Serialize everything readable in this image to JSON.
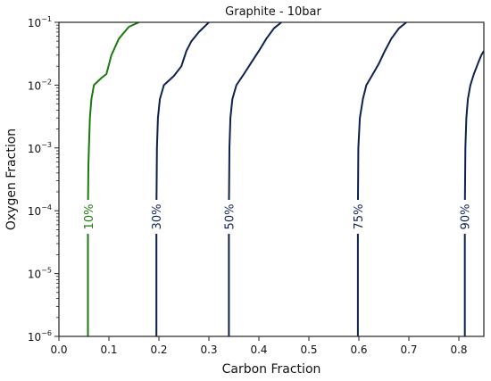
{
  "chart_data": {
    "type": "line",
    "title": "Graphite - 10bar",
    "xlabel": "Carbon Fraction",
    "ylabel": "Oxygen Fraction",
    "xlim": [
      0.0,
      0.85
    ],
    "ylim": [
      1e-06,
      0.1
    ],
    "y_scale": "log",
    "grid": false,
    "legend": "none",
    "x_ticks": [
      0.0,
      0.1,
      0.2,
      0.3,
      0.4,
      0.5,
      0.6,
      0.7,
      0.8
    ],
    "x_tick_labels": [
      "0.0",
      "0.1",
      "0.2",
      "0.3",
      "0.4",
      "0.5",
      "0.6",
      "0.7",
      "0.8"
    ],
    "y_ticks": [
      {
        "value": 1e-06,
        "base": "10",
        "exp": "−6"
      },
      {
        "value": 1e-05,
        "base": "10",
        "exp": "−5"
      },
      {
        "value": 0.0001,
        "base": "10",
        "exp": "−4"
      },
      {
        "value": 0.001,
        "base": "10",
        "exp": "−3"
      },
      {
        "value": 0.01,
        "base": "10",
        "exp": "−2"
      },
      {
        "value": 0.1,
        "base": "10",
        "exp": "−1"
      }
    ],
    "series": [
      {
        "label": "10%",
        "color": "#1a7a10",
        "label_at": {
          "x": 0.059,
          "y": 8e-05
        },
        "points": [
          [
            0.058,
            1e-06
          ],
          [
            0.058,
            0.0001
          ],
          [
            0.059,
            0.0005
          ],
          [
            0.06,
            0.001
          ],
          [
            0.062,
            0.003
          ],
          [
            0.065,
            0.006
          ],
          [
            0.07,
            0.01
          ],
          [
            0.085,
            0.013
          ],
          [
            0.095,
            0.015
          ],
          [
            0.105,
            0.03
          ],
          [
            0.12,
            0.055
          ],
          [
            0.14,
            0.085
          ],
          [
            0.16,
            0.1
          ]
        ]
      },
      {
        "label": "30%",
        "color": "#0d2150",
        "label_at": {
          "x": 0.195,
          "y": 8e-05
        },
        "points": [
          [
            0.195,
            1e-06
          ],
          [
            0.195,
            0.0001
          ],
          [
            0.196,
            0.001
          ],
          [
            0.198,
            0.003
          ],
          [
            0.202,
            0.006
          ],
          [
            0.21,
            0.01
          ],
          [
            0.23,
            0.014
          ],
          [
            0.245,
            0.02
          ],
          [
            0.255,
            0.035
          ],
          [
            0.265,
            0.05
          ],
          [
            0.28,
            0.07
          ],
          [
            0.3,
            0.1
          ]
        ]
      },
      {
        "label": "50%",
        "color": "#0d2150",
        "label_at": {
          "x": 0.34,
          "y": 8e-05
        },
        "points": [
          [
            0.34,
            1e-06
          ],
          [
            0.34,
            0.0001
          ],
          [
            0.341,
            0.001
          ],
          [
            0.343,
            0.003
          ],
          [
            0.347,
            0.006
          ],
          [
            0.355,
            0.01
          ],
          [
            0.37,
            0.015
          ],
          [
            0.385,
            0.023
          ],
          [
            0.4,
            0.035
          ],
          [
            0.415,
            0.055
          ],
          [
            0.43,
            0.08
          ],
          [
            0.445,
            0.1
          ]
        ]
      },
      {
        "label": "75%",
        "color": "#0d2150",
        "label_at": {
          "x": 0.598,
          "y": 8e-05
        },
        "points": [
          [
            0.598,
            1e-06
          ],
          [
            0.598,
            0.0001
          ],
          [
            0.599,
            0.001
          ],
          [
            0.602,
            0.003
          ],
          [
            0.608,
            0.006
          ],
          [
            0.615,
            0.01
          ],
          [
            0.628,
            0.015
          ],
          [
            0.64,
            0.022
          ],
          [
            0.652,
            0.035
          ],
          [
            0.665,
            0.055
          ],
          [
            0.68,
            0.08
          ],
          [
            0.695,
            0.1
          ]
        ]
      },
      {
        "label": "90%",
        "color": "#0d2150",
        "label_at": {
          "x": 0.812,
          "y": 8e-05
        },
        "points": [
          [
            0.812,
            1e-06
          ],
          [
            0.812,
            0.0001
          ],
          [
            0.813,
            0.001
          ],
          [
            0.815,
            0.003
          ],
          [
            0.818,
            0.006
          ],
          [
            0.823,
            0.01
          ],
          [
            0.83,
            0.015
          ],
          [
            0.838,
            0.022
          ],
          [
            0.845,
            0.03
          ],
          [
            0.85,
            0.035
          ]
        ]
      }
    ]
  }
}
